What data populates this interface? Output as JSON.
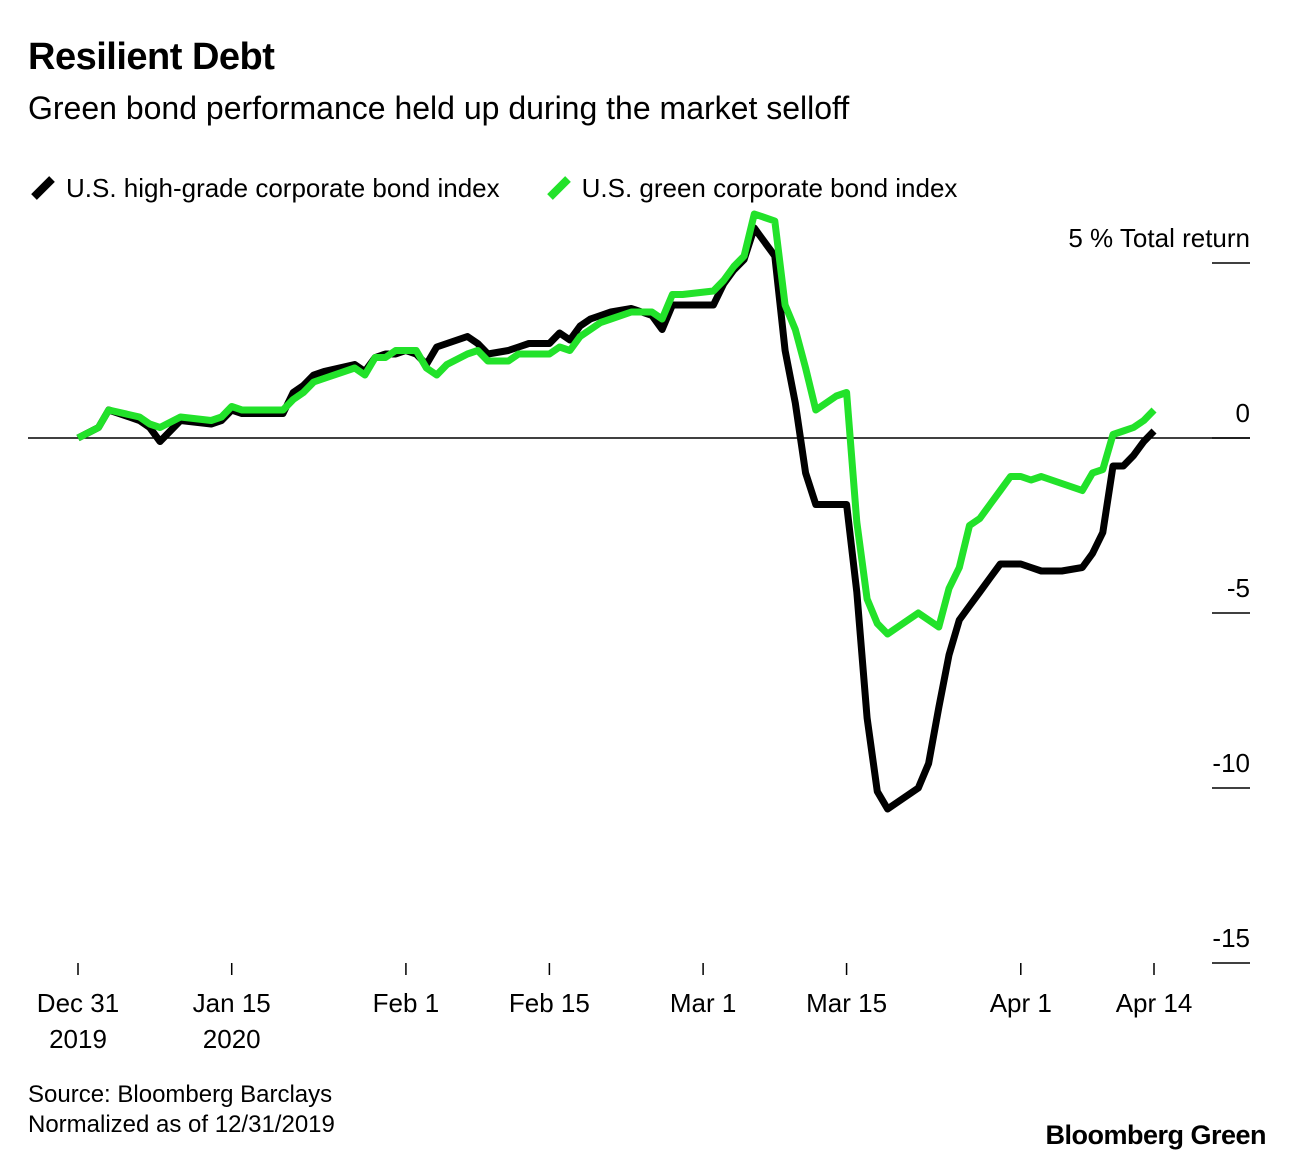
{
  "header": {
    "title": "Resilient Debt",
    "subtitle": "Green bond performance held up during the market selloff"
  },
  "legend": [
    {
      "label": "U.S. high-grade corporate bond index",
      "color": "#000000"
    },
    {
      "label": "U.S. green corporate bond index",
      "color": "#22e22a"
    }
  ],
  "footer": {
    "source": "Source: Bloomberg Barclays",
    "note": "Normalized as of 12/31/2019",
    "brand": "Bloomberg Green"
  },
  "chart_data": {
    "type": "line",
    "title": "Resilient Debt",
    "subtitle": "Green bond performance held up during the market selloff",
    "xlabel": "",
    "ylabel": "% Total return",
    "ylim": [
      -15,
      5
    ],
    "xlim": [
      0,
      106
    ],
    "yticks": [
      {
        "value": 5,
        "label": "5 % Total return"
      },
      {
        "value": 0,
        "label": "0"
      },
      {
        "value": -5,
        "label": "-5"
      },
      {
        "value": -10,
        "label": "-10"
      },
      {
        "value": -15,
        "label": "-15"
      }
    ],
    "xticks": [
      {
        "day": 0,
        "label": "Dec 31",
        "label2": "2019"
      },
      {
        "day": 15,
        "label": "Jan 15",
        "label2": "2020"
      },
      {
        "day": 32,
        "label": "Feb 1",
        "label2": ""
      },
      {
        "day": 46,
        "label": "Feb 15",
        "label2": ""
      },
      {
        "day": 61,
        "label": "Mar 1",
        "label2": ""
      },
      {
        "day": 75,
        "label": "Mar 15",
        "label2": ""
      },
      {
        "day": 92,
        "label": "Apr 1",
        "label2": ""
      },
      {
        "day": 105,
        "label": "Apr 14",
        "label2": ""
      }
    ],
    "zero_line": true,
    "grid": false,
    "legend_position": "top-left",
    "series": [
      {
        "name": "U.S. high-grade corporate bond index",
        "color": "#000000",
        "x": [
          0,
          2,
          3,
          6,
          7,
          8,
          10,
          13,
          14,
          15,
          16,
          20,
          21,
          22,
          23,
          24,
          27,
          28,
          29,
          30,
          31,
          32,
          33,
          34,
          35,
          36,
          38,
          39,
          40,
          42,
          43,
          44,
          45,
          46,
          47,
          48,
          49,
          50,
          51,
          52,
          54,
          56,
          57,
          58,
          59,
          62,
          63,
          64,
          65,
          66,
          68,
          69,
          70,
          71,
          72,
          73,
          74,
          75,
          76,
          77,
          78,
          79,
          80,
          82,
          83,
          84,
          85,
          86,
          87,
          88,
          89,
          90,
          91,
          92,
          93,
          94,
          96,
          98,
          99,
          100,
          101,
          102,
          103,
          104,
          105
        ],
        "values": [
          0.0,
          0.3,
          0.8,
          0.5,
          0.3,
          -0.1,
          0.5,
          0.4,
          0.5,
          0.8,
          0.7,
          0.7,
          1.3,
          1.5,
          1.8,
          1.9,
          2.1,
          1.9,
          2.3,
          2.4,
          2.4,
          2.5,
          2.4,
          2.1,
          2.6,
          2.7,
          2.9,
          2.7,
          2.4,
          2.5,
          2.6,
          2.7,
          2.7,
          2.7,
          3.0,
          2.8,
          3.2,
          3.4,
          3.5,
          3.6,
          3.7,
          3.5,
          3.1,
          3.8,
          3.8,
          3.8,
          4.4,
          4.8,
          5.1,
          6.0,
          5.2,
          2.5,
          1.0,
          -1.0,
          -1.9,
          -1.9,
          -1.9,
          -1.9,
          -4.4,
          -8.0,
          -10.1,
          -10.6,
          -10.4,
          -10.0,
          -9.3,
          -7.7,
          -6.2,
          -5.2,
          -4.8,
          -4.4,
          -4.0,
          -3.6,
          -3.6,
          -3.6,
          -3.7,
          -3.8,
          -3.8,
          -3.7,
          -3.3,
          -2.7,
          -0.8,
          -0.8,
          -0.5,
          -0.1,
          0.2
        ]
      },
      {
        "name": "U.S. green corporate bond index",
        "color": "#22e22a",
        "x": [
          0,
          2,
          3,
          6,
          7,
          8,
          10,
          13,
          14,
          15,
          16,
          20,
          21,
          22,
          23,
          24,
          27,
          28,
          29,
          30,
          31,
          32,
          33,
          34,
          35,
          36,
          38,
          39,
          40,
          42,
          43,
          44,
          45,
          46,
          47,
          48,
          49,
          50,
          51,
          52,
          54,
          56,
          57,
          58,
          59,
          62,
          63,
          64,
          65,
          66,
          68,
          69,
          70,
          71,
          72,
          73,
          74,
          75,
          76,
          77,
          78,
          79,
          80,
          82,
          83,
          84,
          85,
          86,
          87,
          88,
          89,
          90,
          91,
          92,
          93,
          94,
          96,
          98,
          99,
          100,
          101,
          102,
          103,
          104,
          105
        ],
        "values": [
          0.0,
          0.3,
          0.8,
          0.6,
          0.4,
          0.3,
          0.6,
          0.5,
          0.6,
          0.9,
          0.8,
          0.8,
          1.1,
          1.3,
          1.6,
          1.7,
          2.0,
          1.8,
          2.3,
          2.3,
          2.5,
          2.5,
          2.5,
          2.0,
          1.8,
          2.1,
          2.4,
          2.5,
          2.2,
          2.2,
          2.4,
          2.4,
          2.4,
          2.4,
          2.6,
          2.5,
          2.9,
          3.1,
          3.3,
          3.4,
          3.6,
          3.6,
          3.4,
          4.1,
          4.1,
          4.2,
          4.5,
          4.9,
          5.2,
          6.4,
          6.2,
          3.8,
          3.1,
          2.0,
          0.8,
          1.0,
          1.2,
          1.3,
          -2.4,
          -4.6,
          -5.3,
          -5.6,
          -5.4,
          -5.0,
          -5.2,
          -5.4,
          -4.3,
          -3.7,
          -2.5,
          -2.3,
          -1.9,
          -1.5,
          -1.1,
          -1.1,
          -1.2,
          -1.1,
          -1.3,
          -1.5,
          -1.0,
          -0.9,
          0.1,
          0.2,
          0.3,
          0.5,
          0.8
        ]
      }
    ]
  }
}
